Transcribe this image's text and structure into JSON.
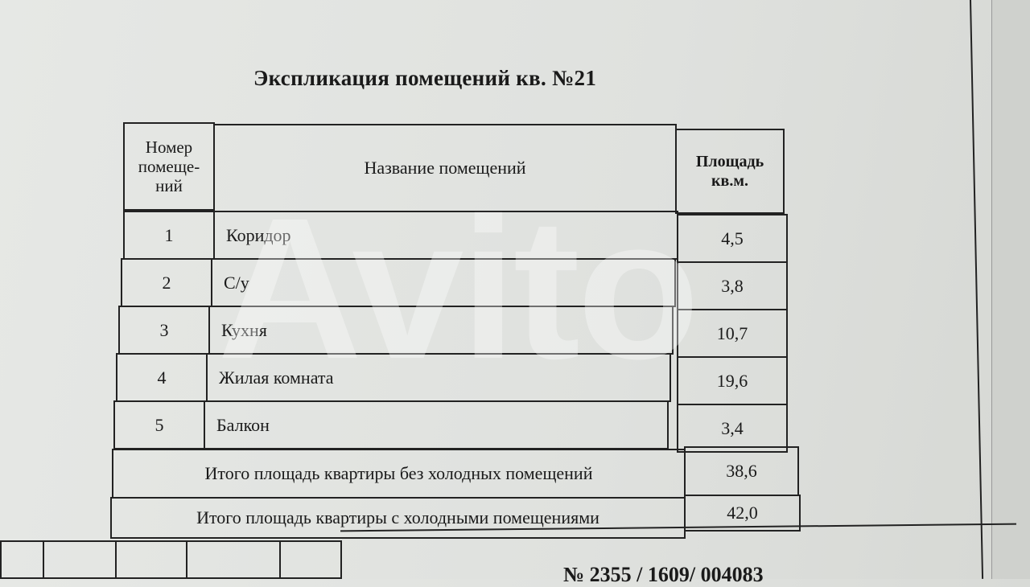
{
  "title": "Экспликация помещений кв. №21",
  "headers": {
    "number": "Номер помеще-ний",
    "name": "Название помещений",
    "area": "Площадь кв.м."
  },
  "rows": [
    {
      "number": "1",
      "name": "Коридор",
      "area": "4,5"
    },
    {
      "number": "2",
      "name": "С/у",
      "area": "3,8"
    },
    {
      "number": "3",
      "name": "Кухня",
      "area": "10,7"
    },
    {
      "number": "4",
      "name": "Жилая комната",
      "area": "19,6"
    },
    {
      "number": "5",
      "name": "Балкон",
      "area": "3,4"
    }
  ],
  "totals": [
    {
      "label": "Итого площадь квартиры без холодных помещений",
      "area": "38,6"
    },
    {
      "label": "Итого площадь квартиры с холодными помещениями",
      "area": "42,0"
    }
  ],
  "document_number": "№ 2355 / 1609/ 004083",
  "watermark": "Avito"
}
